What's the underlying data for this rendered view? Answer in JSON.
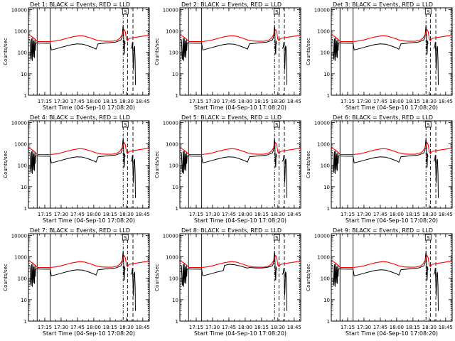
{
  "figure": {
    "x_label": "Start Time (04-Sep-10 17:08:20)",
    "y_label": "Counts/sec",
    "x_ticks": [
      {
        "label": "17:15",
        "t": 15
      },
      {
        "label": "17:30",
        "t": 30
      },
      {
        "label": "17:45",
        "t": 45
      },
      {
        "label": "18:00",
        "t": 60
      },
      {
        "label": "18:15",
        "t": 75
      },
      {
        "label": "18:30",
        "t": 90
      },
      {
        "label": "18:45",
        "t": 105
      }
    ],
    "y_ticks": [
      {
        "label": "1",
        "v": 1
      },
      {
        "label": "10",
        "v": 10
      },
      {
        "label": "100",
        "v": 100
      },
      {
        "label": "1000",
        "v": 1000
      },
      {
        "label": "10000",
        "v": 10000
      }
    ]
  },
  "chart_data": {
    "type": "line",
    "y_scale": "log",
    "x_unit": "minutes after 17:08:20",
    "xlim": [
      0,
      111
    ],
    "ylim": [
      1,
      12000
    ],
    "annotation": "S",
    "annotation_t": 89,
    "series_names": [
      "Events (black)",
      "LLD (red)"
    ],
    "colors": {
      "events": "#000000",
      "lld": "#ff0000"
    },
    "solid_markers_t": [
      8,
      20
    ],
    "dashdot_marker_t": [
      87
    ],
    "dashed_markers_t": [
      91,
      96
    ],
    "dotted_marker_t": [
      110
    ],
    "panels": [
      {
        "id": 1,
        "title": "Det 1: BLACK = Events, RED = LLD",
        "variant": "normal"
      },
      {
        "id": 2,
        "title": "Det 2: BLACK = Events, RED = LLD",
        "variant": "normal"
      },
      {
        "id": 3,
        "title": "Det 3: BLACK = Events, RED = LLD",
        "variant": "normal"
      },
      {
        "id": 4,
        "title": "Det 4: BLACK = Events, RED = LLD",
        "variant": "normal"
      },
      {
        "id": 5,
        "title": "Det 5: BLACK = Events, RED = LLD",
        "variant": "normal"
      },
      {
        "id": 6,
        "title": "Det 6: BLACK = Events, RED = LLD",
        "variant": "normal"
      },
      {
        "id": 7,
        "title": "Det 7: BLACK = Events, RED = LLD",
        "variant": "normal"
      },
      {
        "id": 8,
        "title": "Det 8: BLACK = Events, RED = LLD",
        "variant": "det8"
      },
      {
        "id": 9,
        "title": "Det 9: BLACK = Events, RED = LLD",
        "variant": "normal"
      }
    ],
    "events": {
      "early_spikes": [
        [
          1,
          400
        ],
        [
          1.5,
          350
        ],
        [
          2,
          60
        ],
        [
          2.5,
          45
        ],
        [
          3,
          450
        ],
        [
          3.5,
          40
        ],
        [
          4,
          500
        ],
        [
          4.5,
          60
        ],
        [
          5,
          350
        ],
        [
          5.5,
          55
        ],
        [
          6,
          400
        ],
        [
          6.3,
          120
        ],
        [
          6.6,
          250
        ],
        [
          7,
          280
        ]
      ],
      "main": [
        [
          7,
          280
        ],
        [
          10,
          270
        ],
        [
          15,
          265
        ],
        [
          20,
          265
        ],
        [
          21,
          130
        ],
        [
          25,
          145
        ],
        [
          30,
          170
        ],
        [
          35,
          200
        ],
        [
          40,
          230
        ],
        [
          45,
          250
        ],
        [
          50,
          240
        ],
        [
          55,
          200
        ],
        [
          60,
          160
        ],
        [
          62,
          140
        ],
        [
          64,
          250
        ],
        [
          70,
          270
        ],
        [
          75,
          285
        ],
        [
          80,
          300
        ],
        [
          85,
          380
        ],
        [
          86,
          500
        ],
        [
          86.5,
          1000
        ],
        [
          87,
          1800
        ],
        [
          87.3,
          900
        ],
        [
          87.6,
          150
        ],
        [
          88,
          80
        ],
        [
          88.4,
          350
        ],
        [
          88.8,
          250
        ]
      ],
      "tail": [
        [
          94,
          150
        ],
        [
          95,
          180
        ],
        [
          95.5,
          300
        ],
        [
          96,
          60
        ],
        [
          96.3,
          15
        ],
        [
          96.6,
          35
        ],
        [
          97,
          200
        ],
        [
          97.5,
          180
        ],
        [
          98,
          40
        ],
        [
          98.3,
          3
        ]
      ],
      "det8_main": [
        [
          7,
          280
        ],
        [
          10,
          270
        ],
        [
          15,
          265
        ],
        [
          20,
          265
        ],
        [
          21,
          130
        ],
        [
          25,
          145
        ],
        [
          30,
          170
        ],
        [
          35,
          200
        ],
        [
          40,
          230
        ],
        [
          41,
          400
        ],
        [
          43,
          420
        ],
        [
          45,
          450
        ],
        [
          50,
          430
        ],
        [
          55,
          380
        ],
        [
          60,
          320
        ],
        [
          62,
          300
        ],
        [
          64,
          320
        ],
        [
          70,
          300
        ],
        [
          75,
          300
        ],
        [
          80,
          320
        ],
        [
          85,
          380
        ],
        [
          86,
          500
        ],
        [
          86.5,
          1000
        ],
        [
          87,
          1800
        ],
        [
          87.3,
          900
        ],
        [
          87.6,
          150
        ],
        [
          88,
          80
        ],
        [
          88.4,
          350
        ],
        [
          88.8,
          250
        ]
      ]
    },
    "lld": [
      [
        0,
        650
      ],
      [
        3,
        550
      ],
      [
        6,
        420
      ],
      [
        8,
        320
      ],
      [
        14,
        320
      ],
      [
        20,
        320
      ],
      [
        25,
        340
      ],
      [
        30,
        380
      ],
      [
        35,
        450
      ],
      [
        40,
        520
      ],
      [
        45,
        580
      ],
      [
        48,
        600
      ],
      [
        52,
        560
      ],
      [
        57,
        470
      ],
      [
        62,
        380
      ],
      [
        67,
        340
      ],
      [
        72,
        330
      ],
      [
        77,
        330
      ],
      [
        81,
        360
      ],
      [
        84,
        450
      ],
      [
        86,
        650
      ],
      [
        87,
        950
      ],
      [
        88,
        1150
      ],
      [
        89,
        900
      ],
      [
        90,
        420
      ],
      [
        91,
        350
      ],
      [
        92,
        420
      ],
      [
        93,
        450
      ],
      [
        95,
        470
      ],
      [
        98,
        500
      ],
      [
        103,
        550
      ],
      [
        108,
        600
      ],
      [
        111,
        620
      ]
    ]
  }
}
